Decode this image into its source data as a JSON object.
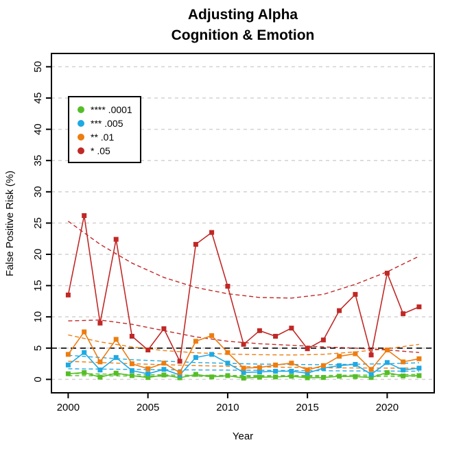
{
  "title": {
    "line1": "Adjusting Alpha",
    "line2": "Cognition & Emotion"
  },
  "axes": {
    "x_label": "Year",
    "y_label": "False Positive Risk (%)",
    "x_ticks": [
      2000,
      2005,
      2010,
      2015,
      2020
    ],
    "y_ticks": [
      0,
      5,
      10,
      15,
      20,
      25,
      30,
      35,
      40,
      45,
      50
    ]
  },
  "colors": {
    "grid": "#d2d2d2",
    "threshold": "#000000",
    "axis": "#000000",
    "background": "#ffffff"
  },
  "chart_data": {
    "type": "line",
    "title": "Adjusting Alpha - Cognition & Emotion",
    "xlabel": "Year",
    "ylabel": "False Positive Risk (%)",
    "xlim": [
      1999,
      2023
    ],
    "ylim": [
      0,
      52
    ],
    "grid": "horizontal dashed gray every 5",
    "legend_position": "upper-left",
    "threshold_line": {
      "y": 5,
      "color": "#000000",
      "style": "dashed"
    },
    "x": [
      2000,
      2001,
      2002,
      2003,
      2004,
      2005,
      2006,
      2007,
      2008,
      2009,
      2010,
      2011,
      2012,
      2013,
      2014,
      2015,
      2016,
      2017,
      2018,
      2019,
      2020,
      2021,
      2022
    ],
    "series": [
      {
        "id": "alpha-0001",
        "label": "**** .0001",
        "alpha": ".0001",
        "color": "#55be27",
        "marker": "square",
        "values": [
          0.9,
          1.1,
          0.35,
          1.0,
          0.6,
          0.3,
          0.7,
          0.25,
          0.8,
          0.4,
          0.6,
          0.2,
          0.35,
          0.4,
          0.5,
          0.25,
          0.3,
          0.5,
          0.45,
          0.3,
          1.1,
          0.55,
          0.6
        ],
        "trend_curves": [
          [
            [
              2000,
              0.95
            ],
            [
              2004,
              0.78
            ],
            [
              2008,
              0.66
            ],
            [
              2012,
              0.6
            ],
            [
              2016,
              0.62
            ],
            [
              2020,
              0.72
            ],
            [
              2022,
              0.8
            ]
          ],
          [
            [
              2000,
              0.6
            ],
            [
              2006,
              0.5
            ],
            [
              2012,
              0.45
            ],
            [
              2018,
              0.45
            ],
            [
              2022,
              0.5
            ]
          ]
        ]
      },
      {
        "id": "alpha-005",
        "label": "*** .005",
        "alpha": ".005",
        "color": "#1fa9e2",
        "marker": "square",
        "values": [
          2.3,
          4.3,
          1.5,
          3.5,
          1.4,
          0.9,
          1.6,
          0.7,
          3.5,
          4.0,
          2.6,
          1.1,
          1.2,
          1.3,
          1.3,
          1.0,
          1.8,
          2.2,
          2.4,
          0.8,
          2.7,
          1.5,
          1.8
        ],
        "trend_curves": [
          [
            [
              2000,
              3.85
            ],
            [
              2004,
              3.15
            ],
            [
              2008,
              2.7
            ],
            [
              2012,
              2.45
            ],
            [
              2016,
              2.35
            ],
            [
              2020,
              2.5
            ],
            [
              2022,
              2.65
            ]
          ],
          [
            [
              2000,
              1.7
            ],
            [
              2006,
              1.55
            ],
            [
              2012,
              1.45
            ],
            [
              2018,
              1.35
            ],
            [
              2022,
              1.3
            ]
          ]
        ]
      },
      {
        "id": "alpha-01",
        "label": "** .01",
        "alpha": ".01",
        "color": "#ec7d10",
        "marker": "square",
        "values": [
          4.0,
          7.6,
          2.8,
          6.4,
          2.5,
          1.7,
          2.6,
          1.1,
          6.1,
          7.0,
          4.3,
          1.8,
          1.9,
          2.3,
          2.6,
          1.5,
          2.2,
          3.7,
          4.1,
          1.6,
          4.7,
          2.8,
          3.3
        ],
        "trend_curves": [
          [
            [
              2000,
              7.1
            ],
            [
              2002,
              6.0
            ],
            [
              2004,
              5.2
            ],
            [
              2006,
              4.6
            ],
            [
              2008,
              4.25
            ],
            [
              2010,
              4.05
            ],
            [
              2012,
              3.95
            ],
            [
              2014,
              3.9
            ],
            [
              2016,
              4.0
            ],
            [
              2018,
              4.4
            ],
            [
              2020,
              4.9
            ],
            [
              2022,
              5.6
            ]
          ],
          [
            [
              2000,
              2.9
            ],
            [
              2004,
              2.5
            ],
            [
              2008,
              2.2
            ],
            [
              2012,
              2.0
            ],
            [
              2016,
              1.85
            ],
            [
              2020,
              1.8
            ],
            [
              2022,
              1.8
            ]
          ]
        ]
      },
      {
        "id": "alpha-05",
        "label": "* .05",
        "alpha": ".05",
        "color": "#c02826",
        "marker": "square",
        "values": [
          13.5,
          26.2,
          9.0,
          22.4,
          6.9,
          4.7,
          8.1,
          2.9,
          21.6,
          23.5,
          14.9,
          5.6,
          7.8,
          6.9,
          8.2,
          4.9,
          6.3,
          11.0,
          13.6,
          3.9,
          17.0,
          10.5,
          11.6
        ],
        "trend_curves": [
          [
            [
              2000,
              25.3
            ],
            [
              2002,
              21.6
            ],
            [
              2004,
              18.6
            ],
            [
              2006,
              16.3
            ],
            [
              2008,
              14.7
            ],
            [
              2010,
              13.7
            ],
            [
              2012,
              13.1
            ],
            [
              2014,
              13.0
            ],
            [
              2016,
              13.6
            ],
            [
              2018,
              15.2
            ],
            [
              2020,
              17.2
            ],
            [
              2022,
              19.7
            ]
          ],
          [
            [
              2000,
              9.35
            ],
            [
              2002,
              9.5
            ],
            [
              2004,
              8.8
            ],
            [
              2006,
              7.8
            ],
            [
              2008,
              6.8
            ],
            [
              2010,
              6.1
            ],
            [
              2012,
              5.7
            ],
            [
              2014,
              5.45
            ],
            [
              2016,
              5.2
            ],
            [
              2018,
              5.0
            ],
            [
              2020,
              4.7
            ],
            [
              2022,
              4.3
            ]
          ]
        ]
      }
    ]
  },
  "legend": {
    "items": [
      {
        "label": "**** .0001"
      },
      {
        "label": "*** .005"
      },
      {
        "label": "** .01"
      },
      {
        "label": "* .05"
      }
    ]
  }
}
